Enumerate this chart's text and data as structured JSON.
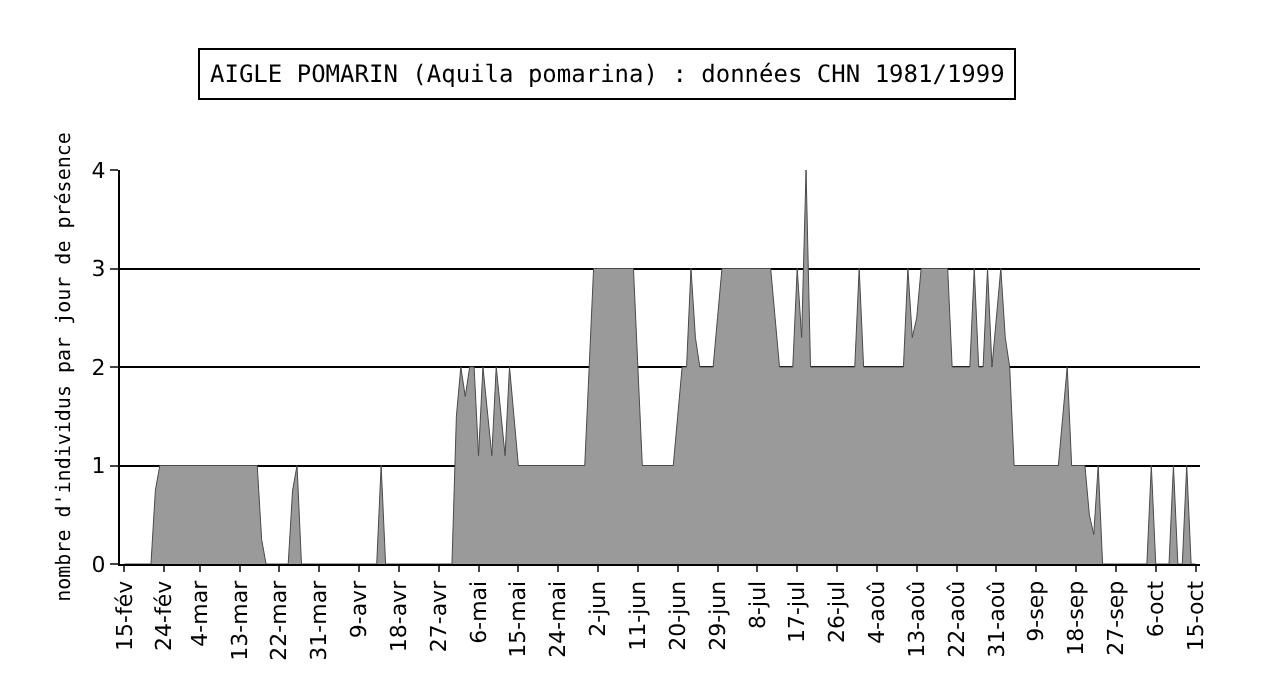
{
  "chart_data": {
    "type": "area",
    "title": "AIGLE POMARIN (Aquila pomarina) : données CHN 1981/1999",
    "ylabel": "nombre d'individus par jour de présence",
    "x": [
      "--02-15",
      "--02-21",
      "--02-22",
      "--02-23",
      "--03-17",
      "--03-18",
      "--03-19",
      "--03-24",
      "--03-25",
      "--03-26",
      "--03-27",
      "--04-13",
      "--04-14",
      "--04-15",
      "--04-30",
      "--05-01",
      "--05-02",
      "--05-03",
      "--05-04",
      "--05-05",
      "--05-06",
      "--05-07",
      "--05-09",
      "--05-10",
      "--05-12",
      "--05-13",
      "--05-15",
      "--05-30",
      "--05-31",
      "--06-01",
      "--06-10",
      "--06-11",
      "--06-12",
      "--06-19",
      "--06-20",
      "--06-21",
      "--06-22",
      "--06-23",
      "--06-24",
      "--06-25",
      "--06-28",
      "--06-29",
      "--06-30",
      "--07-11",
      "--07-12",
      "--07-13",
      "--07-16",
      "--07-17",
      "--07-18",
      "--07-19",
      "--07-20",
      "--07-30",
      "--07-31",
      "--08-01",
      "--08-10",
      "--08-11",
      "--08-12",
      "--08-13",
      "--08-14",
      "--08-20",
      "--08-21",
      "--08-25",
      "--08-26",
      "--08-27",
      "--08-28",
      "--08-29",
      "--08-30",
      "--09-01",
      "--09-02",
      "--09-03",
      "--09-04",
      "--09-14",
      "--09-15",
      "--09-16",
      "--09-17",
      "--09-20",
      "--09-21",
      "--09-22",
      "--09-23",
      "--09-24",
      "--10-04",
      "--10-05",
      "--10-06",
      "--10-09",
      "--10-10",
      "--10-11",
      "--10-12",
      "--10-13",
      "--10-14",
      "--10-15"
    ],
    "series": [
      {
        "color": "#9a9a9a",
        "values": [
          0,
          0,
          0.75,
          1,
          1,
          0.25,
          0,
          0,
          0.75,
          1,
          0,
          0,
          1,
          0,
          0,
          1.5,
          2,
          1.7,
          2,
          2,
          1.1,
          2,
          1.1,
          2,
          1.1,
          2,
          1,
          1,
          2,
          3,
          3,
          2,
          1,
          1,
          1.5,
          2,
          2,
          3,
          2.3,
          2,
          2,
          2.5,
          3,
          3,
          2.5,
          2,
          2,
          3,
          2.3,
          4,
          2,
          2,
          3,
          2,
          2,
          3,
          2.3,
          2.5,
          3,
          3,
          2,
          2,
          3,
          2,
          2,
          3,
          2,
          3,
          2.3,
          2,
          1,
          1,
          1.5,
          2,
          1,
          1,
          0.5,
          0.3,
          1,
          0,
          0,
          1,
          0,
          0,
          1,
          0,
          0,
          1,
          0,
          0
        ]
      }
    ],
    "xlim": [
      "--02-14",
      "--10-16"
    ],
    "xticks": [
      {
        "value": "--02-15",
        "label": "15-fév"
      },
      {
        "value": "--02-24",
        "label": "24-fév"
      },
      {
        "value": "--03-04",
        "label": "4-mar"
      },
      {
        "value": "--03-13",
        "label": "13-mar"
      },
      {
        "value": "--03-22",
        "label": "22-mar"
      },
      {
        "value": "--03-31",
        "label": "31-mar"
      },
      {
        "value": "--04-09",
        "label": "9-avr"
      },
      {
        "value": "--04-18",
        "label": "18-avr"
      },
      {
        "value": "--04-27",
        "label": "27-avr"
      },
      {
        "value": "--05-06",
        "label": "6-mai"
      },
      {
        "value": "--05-15",
        "label": "15-mai"
      },
      {
        "value": "--05-24",
        "label": "24-mai"
      },
      {
        "value": "--06-02",
        "label": "2-jun"
      },
      {
        "value": "--06-11",
        "label": "11-jun"
      },
      {
        "value": "--06-20",
        "label": "20-jun"
      },
      {
        "value": "--06-29",
        "label": "29-jun"
      },
      {
        "value": "--07-08",
        "label": "8-jul"
      },
      {
        "value": "--07-17",
        "label": "17-jul"
      },
      {
        "value": "--07-26",
        "label": "26-jul"
      },
      {
        "value": "--08-04",
        "label": "4-aoû"
      },
      {
        "value": "--08-13",
        "label": "13-aoû"
      },
      {
        "value": "--08-22",
        "label": "22-aoû"
      },
      {
        "value": "--08-31",
        "label": "31-aoû"
      },
      {
        "value": "--09-09",
        "label": "9-sep"
      },
      {
        "value": "--09-18",
        "label": "18-sep"
      },
      {
        "value": "--09-27",
        "label": "27-sep"
      },
      {
        "value": "--10-06",
        "label": "6-oct"
      },
      {
        "value": "--10-15",
        "label": "15-oct"
      }
    ],
    "ylim": [
      0,
      4
    ],
    "yticks": [
      0,
      1,
      2,
      3,
      4
    ],
    "grid": "y"
  }
}
